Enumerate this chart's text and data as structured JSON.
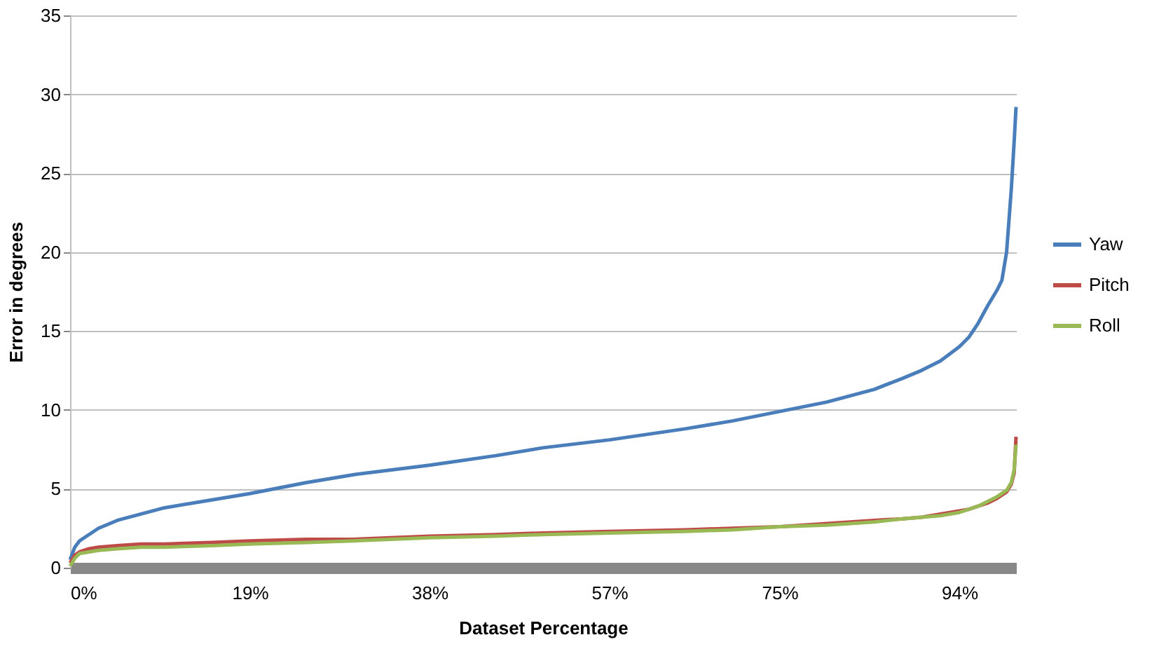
{
  "chart_data": {
    "type": "line",
    "xlabel": "Dataset Percentage",
    "ylabel": "Error in degrees",
    "x": [
      0,
      0.5,
      1,
      2,
      3,
      5,
      7.5,
      10,
      15,
      19,
      25,
      30,
      38,
      45,
      50,
      57,
      65,
      70,
      75,
      80,
      85,
      88,
      90,
      92,
      94,
      95,
      96,
      97,
      98,
      98.5,
      99,
      99.5,
      99.8,
      100
    ],
    "series": [
      {
        "name": "Yaw",
        "color": "#4a7ebb",
        "values": [
          0.5,
          1.3,
          1.7,
          2.1,
          2.5,
          3.0,
          3.4,
          3.8,
          4.3,
          4.7,
          5.4,
          5.9,
          6.5,
          7.1,
          7.6,
          8.1,
          8.8,
          9.3,
          9.9,
          10.5,
          11.3,
          12.0,
          12.5,
          13.1,
          14.0,
          14.6,
          15.5,
          16.6,
          17.6,
          18.2,
          20.0,
          24.0,
          27.0,
          29.2
        ]
      },
      {
        "name": "Pitch",
        "color": "#be4b48",
        "values": [
          0.3,
          0.8,
          1.0,
          1.2,
          1.3,
          1.4,
          1.5,
          1.5,
          1.6,
          1.7,
          1.8,
          1.8,
          2.0,
          2.1,
          2.2,
          2.3,
          2.4,
          2.5,
          2.6,
          2.8,
          3.0,
          3.1,
          3.2,
          3.4,
          3.6,
          3.7,
          3.9,
          4.1,
          4.4,
          4.6,
          4.8,
          5.3,
          6.0,
          8.3
        ]
      },
      {
        "name": "Roll",
        "color": "#98b954",
        "values": [
          0.1,
          0.6,
          0.9,
          1.0,
          1.1,
          1.2,
          1.3,
          1.3,
          1.4,
          1.5,
          1.6,
          1.7,
          1.9,
          2.0,
          2.1,
          2.2,
          2.3,
          2.4,
          2.6,
          2.7,
          2.9,
          3.1,
          3.2,
          3.3,
          3.5,
          3.7,
          3.9,
          4.2,
          4.5,
          4.7,
          4.9,
          5.4,
          6.2,
          7.8
        ]
      }
    ],
    "xlim": [
      0,
      100
    ],
    "xticks": [
      {
        "value": 0,
        "label": "0%"
      },
      {
        "value": 19,
        "label": "19%"
      },
      {
        "value": 38,
        "label": "38%"
      },
      {
        "value": 57,
        "label": "57%"
      },
      {
        "value": 75,
        "label": "75%"
      },
      {
        "value": 94,
        "label": "94%"
      }
    ],
    "ylim": [
      0,
      35
    ],
    "yticks": [
      0,
      5,
      10,
      15,
      20,
      25,
      30,
      35
    ],
    "grid": "y",
    "legend": "right",
    "marker": "none",
    "line_style": "solid"
  }
}
